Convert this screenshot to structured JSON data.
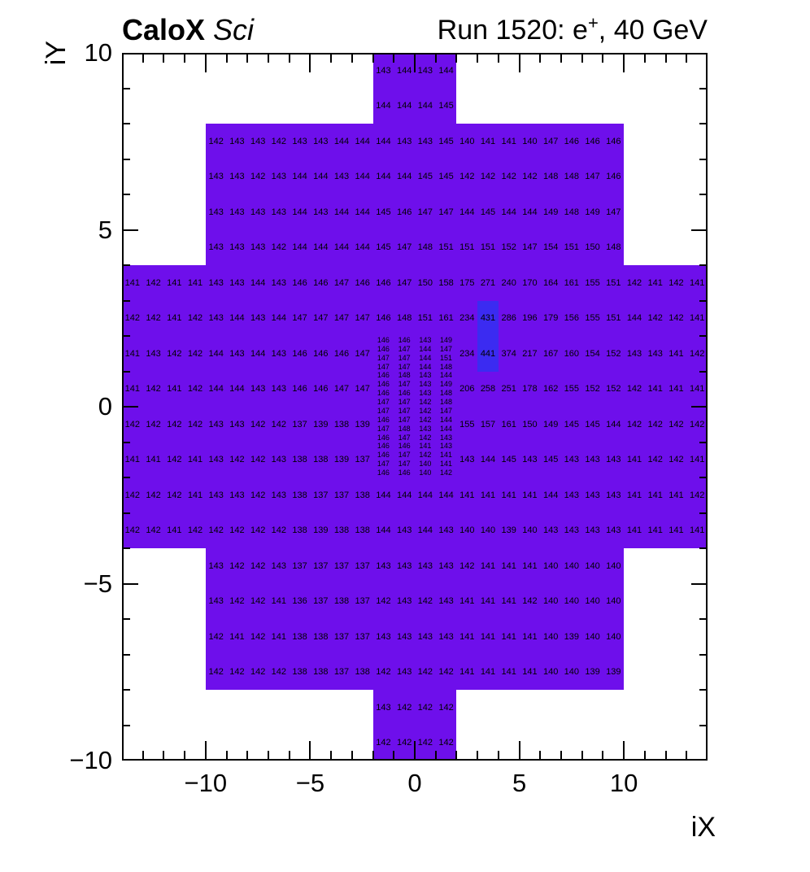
{
  "header": {
    "experiment": "CaloX",
    "sublabel": "Sci",
    "run_prefix": "Run 1520: e",
    "run_sup": "+",
    "run_suffix": ", 40 GeV"
  },
  "chart_data": {
    "type": "heatmap",
    "title": "CaloX Sci — Run 1520: e+, 40 GeV",
    "xlabel": "iX",
    "ylabel": "iY",
    "xlim": [
      -14,
      14
    ],
    "ylim": [
      -10,
      10
    ],
    "x_ticks": [
      -10,
      -5,
      0,
      5,
      10
    ],
    "y_ticks": [
      -10,
      -5,
      0,
      5,
      10
    ],
    "grid": false,
    "legend": "none",
    "base_color": "#6E0FEB",
    "hot_color": "#3B2BF1",
    "text_color": "#000000",
    "blocks": [
      {
        "x0": -2,
        "x1": 2,
        "y0": 8,
        "y1": 10
      },
      {
        "x0": -10,
        "x1": 10,
        "y0": 4,
        "y1": 8
      },
      {
        "x0": -14,
        "x1": 14,
        "y0": -4,
        "y1": 4
      },
      {
        "x0": -10,
        "x1": 10,
        "y0": -8,
        "y1": -4
      },
      {
        "x0": -2,
        "x1": 2,
        "y0": -10,
        "y1": -8
      }
    ],
    "hot_cells": [
      {
        "x0": 3,
        "x1": 4,
        "y0": 2,
        "y1": 3,
        "value": 431
      },
      {
        "x0": 3,
        "x1": 4,
        "y0": 1,
        "y1": 2,
        "value": 441
      }
    ],
    "rows": [
      {
        "iy": 9.5,
        "ix_start": -2,
        "values": [
          143,
          144,
          143,
          144
        ]
      },
      {
        "iy": 8.5,
        "ix_start": -2,
        "values": [
          144,
          144,
          144,
          145
        ]
      },
      {
        "iy": 7.5,
        "ix_start": -10,
        "values": [
          142,
          143,
          143,
          142,
          143,
          143,
          144,
          144,
          144,
          143,
          143,
          145,
          140,
          141,
          141,
          140,
          147,
          146,
          146,
          146
        ]
      },
      {
        "iy": 6.5,
        "ix_start": -10,
        "values": [
          143,
          143,
          142,
          143,
          144,
          144,
          143,
          144,
          144,
          144,
          145,
          145,
          142,
          142,
          142,
          142,
          148,
          148,
          147,
          146
        ]
      },
      {
        "iy": 5.5,
        "ix_start": -10,
        "values": [
          143,
          143,
          143,
          143,
          144,
          143,
          144,
          144,
          145,
          146,
          147,
          147,
          144,
          145,
          144,
          144,
          149,
          148,
          149,
          147
        ]
      },
      {
        "iy": 4.5,
        "ix_start": -10,
        "values": [
          143,
          143,
          143,
          142,
          144,
          144,
          144,
          144,
          145,
          147,
          148,
          151,
          151,
          151,
          152,
          147,
          154,
          151,
          150,
          148
        ]
      },
      {
        "iy": 3.5,
        "ix_start": -14,
        "values": [
          141,
          142,
          141,
          141,
          143,
          143,
          144,
          143,
          146,
          146,
          147,
          146,
          146,
          147,
          150,
          158,
          175,
          271,
          240,
          170,
          164,
          161,
          155,
          151,
          142,
          141,
          142,
          141
        ]
      },
      {
        "iy": 2.5,
        "ix_start": -14,
        "values": [
          142,
          142,
          141,
          142,
          143,
          144,
          143,
          144,
          147,
          147,
          147,
          147,
          146,
          148,
          151,
          161,
          234,
          431,
          286,
          196,
          179,
          156,
          155,
          151,
          144,
          142,
          142,
          141
        ]
      },
      {
        "iy": 1.5,
        "ix_start": -14,
        "values": [
          141,
          143,
          142,
          142,
          144,
          143,
          144,
          143,
          146,
          146,
          146,
          147
        ]
      },
      {
        "iy": 1.5,
        "ix_start": 2,
        "values": [
          234,
          441,
          374,
          217,
          167,
          160,
          154,
          152,
          143,
          143,
          141,
          142
        ]
      },
      {
        "iy": 0.5,
        "ix_start": -14,
        "values": [
          141,
          142,
          141,
          142,
          144,
          144,
          143,
          143,
          146,
          146,
          147,
          147
        ]
      },
      {
        "iy": 0.5,
        "ix_start": 2,
        "values": [
          206,
          258,
          251,
          178,
          162,
          155,
          152,
          152,
          142,
          141,
          141,
          141
        ]
      },
      {
        "iy": -0.5,
        "ix_start": -14,
        "values": [
          142,
          142,
          142,
          142,
          143,
          143,
          142,
          142,
          137,
          139,
          138,
          139
        ]
      },
      {
        "iy": -0.5,
        "ix_start": 2,
        "values": [
          155,
          157,
          161,
          150,
          149,
          145,
          145,
          144,
          142,
          142,
          142,
          142
        ]
      },
      {
        "iy": -1.5,
        "ix_start": -14,
        "values": [
          141,
          141,
          142,
          141,
          143,
          142,
          142,
          143,
          138,
          138,
          139,
          137
        ]
      },
      {
        "iy": -1.5,
        "ix_start": 2,
        "values": [
          143,
          144,
          145,
          143,
          145,
          143,
          143,
          143,
          141,
          142,
          142,
          141
        ]
      },
      {
        "iy": -2.5,
        "ix_start": -14,
        "values": [
          142,
          142,
          142,
          141,
          143,
          143,
          142,
          143,
          138,
          137,
          137,
          138,
          144,
          144,
          144,
          144,
          141,
          141,
          141,
          141,
          144,
          143,
          143,
          143,
          141,
          141,
          141,
          142
        ]
      },
      {
        "iy": -3.5,
        "ix_start": -14,
        "values": [
          142,
          142,
          141,
          142,
          142,
          142,
          142,
          142,
          138,
          139,
          138,
          138,
          144,
          143,
          144,
          143,
          140,
          140,
          139,
          140,
          143,
          143,
          143,
          143,
          141,
          141,
          141,
          141
        ]
      },
      {
        "iy": -4.5,
        "ix_start": -10,
        "values": [
          143,
          142,
          142,
          143,
          137,
          137,
          137,
          137,
          143,
          143,
          143,
          143,
          142,
          141,
          141,
          141,
          140,
          140,
          140,
          140
        ]
      },
      {
        "iy": -5.5,
        "ix_start": -10,
        "values": [
          143,
          142,
          142,
          141,
          136,
          137,
          138,
          137,
          142,
          143,
          142,
          143,
          141,
          141,
          141,
          142,
          140,
          140,
          140,
          140
        ]
      },
      {
        "iy": -6.5,
        "ix_start": -10,
        "values": [
          142,
          141,
          142,
          141,
          138,
          138,
          137,
          137,
          143,
          143,
          143,
          143,
          141,
          141,
          141,
          141,
          140,
          139,
          140,
          140
        ]
      },
      {
        "iy": -7.5,
        "ix_start": -10,
        "values": [
          142,
          142,
          142,
          142,
          138,
          138,
          137,
          138,
          142,
          143,
          142,
          142,
          141,
          141,
          141,
          141,
          140,
          140,
          139,
          139
        ]
      },
      {
        "iy": -8.5,
        "ix_start": -2,
        "values": [
          143,
          142,
          142,
          142
        ]
      },
      {
        "iy": -9.5,
        "ix_start": -2,
        "values": [
          142,
          142,
          142,
          142
        ]
      }
    ],
    "fine_region": {
      "ix_start": -2,
      "n_cols": 4,
      "iy_top": 2,
      "row_height": 0.25,
      "rows": [
        [
          146,
          146,
          143,
          149
        ],
        [
          146,
          147,
          144,
          147
        ],
        [
          147,
          147,
          144,
          151
        ],
        [
          147,
          147,
          144,
          148
        ],
        [
          146,
          148,
          143,
          144
        ],
        [
          146,
          147,
          143,
          149
        ],
        [
          146,
          146,
          143,
          148
        ],
        [
          147,
          147,
          142,
          148
        ],
        [
          147,
          147,
          142,
          147
        ],
        [
          146,
          147,
          142,
          144
        ],
        [
          147,
          148,
          143,
          144
        ],
        [
          146,
          147,
          142,
          143
        ],
        [
          146,
          146,
          141,
          143
        ],
        [
          146,
          147,
          142,
          141
        ],
        [
          147,
          147,
          140,
          141
        ],
        [
          146,
          146,
          140,
          142
        ]
      ]
    }
  }
}
